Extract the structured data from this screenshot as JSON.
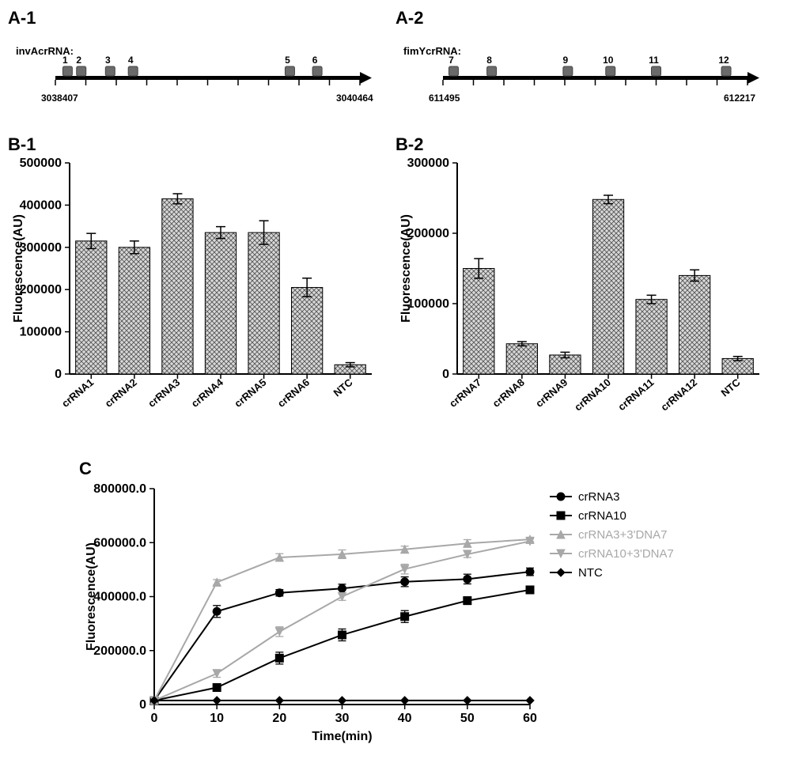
{
  "colors": {
    "black": "#000000",
    "gray": "#a8a8a8",
    "bar_fill": "#888888",
    "hatch": "#555555",
    "marker_fill": "#6b6b6b",
    "bg": "#ffffff"
  },
  "panelA1": {
    "label": "A-1",
    "title": "invAcrRNA:",
    "start_coord": "3038407",
    "end_coord": "3040464",
    "markers": [
      {
        "num": "1",
        "pos": 0.04
      },
      {
        "num": "2",
        "pos": 0.085
      },
      {
        "num": "3",
        "pos": 0.18
      },
      {
        "num": "4",
        "pos": 0.255
      },
      {
        "num": "5",
        "pos": 0.77
      },
      {
        "num": "6",
        "pos": 0.86
      }
    ]
  },
  "panelA2": {
    "label": "A-2",
    "title": "fimYcrRNA:",
    "start_coord": "611495",
    "end_coord": "612217",
    "markers": [
      {
        "num": "7",
        "pos": 0.035
      },
      {
        "num": "8",
        "pos": 0.16
      },
      {
        "num": "9",
        "pos": 0.41
      },
      {
        "num": "10",
        "pos": 0.55
      },
      {
        "num": "11",
        "pos": 0.7
      },
      {
        "num": "12",
        "pos": 0.93
      }
    ]
  },
  "panelB1": {
    "label": "B-1",
    "type": "bar",
    "ylabel": "Fluorescence(AU)",
    "ylim": [
      0,
      500000
    ],
    "ytick_step": 100000,
    "categories": [
      "crRNA1",
      "crRNA2",
      "crRNA3",
      "crRNA4",
      "crRNA5",
      "crRNA6",
      "NTC"
    ],
    "values": [
      315000,
      300000,
      415000,
      335000,
      335000,
      205000,
      22000
    ],
    "errors": [
      18000,
      15000,
      12000,
      14000,
      28000,
      22000,
      5000
    ],
    "bar_width": 0.72,
    "bar_pattern": "crosshatch",
    "bar_fill": "#b8b8b8",
    "axis_color": "#000000",
    "chart_bg": "#ffffff",
    "label_fontsize": 13
  },
  "panelB2": {
    "label": "B-2",
    "type": "bar",
    "ylabel": "Fluorescence(AU)",
    "ylim": [
      0,
      300000
    ],
    "ytick_step": 100000,
    "categories": [
      "crRNA7",
      "crRNA8",
      "crRNA9",
      "crRNA10",
      "crRNA11",
      "crRNA12",
      "NTC"
    ],
    "values": [
      150000,
      43000,
      27000,
      248000,
      106000,
      140000,
      22000
    ],
    "errors": [
      14000,
      3000,
      4000,
      6000,
      6000,
      8000,
      3000
    ],
    "bar_width": 0.72,
    "bar_pattern": "crosshatch",
    "bar_fill": "#b8b8b8",
    "axis_color": "#000000",
    "chart_bg": "#ffffff",
    "label_fontsize": 13
  },
  "panelC": {
    "label": "C",
    "type": "line",
    "ylabel": "Fluorescence(AU)",
    "xlabel": "Time(min)",
    "ylim": [
      0,
      800000
    ],
    "ytick_step": 200000,
    "ytick_format": "decimal1",
    "xlim": [
      0,
      60
    ],
    "xtick_step": 10,
    "axis_color": "#000000",
    "chart_bg": "#ffffff",
    "series": [
      {
        "name": "crRNA3",
        "color": "#000000",
        "marker": "circle",
        "data": [
          [
            0,
            15000
          ],
          [
            10,
            345000
          ],
          [
            20,
            414000
          ],
          [
            30,
            430000
          ],
          [
            40,
            455000
          ],
          [
            50,
            465000
          ],
          [
            60,
            492000
          ]
        ],
        "err": [
          0,
          22000,
          12000,
          16000,
          18000,
          18000,
          14000
        ]
      },
      {
        "name": "crRNA10",
        "color": "#000000",
        "marker": "square",
        "data": [
          [
            0,
            15000
          ],
          [
            10,
            63000
          ],
          [
            20,
            172000
          ],
          [
            30,
            258000
          ],
          [
            40,
            326000
          ],
          [
            50,
            385000
          ],
          [
            60,
            425000
          ]
        ],
        "err": [
          0,
          14000,
          22000,
          22000,
          22000,
          14000,
          14000
        ]
      },
      {
        "name": "crRNA3+3'DNA7",
        "color": "#a8a8a8",
        "marker": "triangle-up",
        "data": [
          [
            0,
            15000
          ],
          [
            10,
            453000
          ],
          [
            20,
            545000
          ],
          [
            30,
            557000
          ],
          [
            40,
            575000
          ],
          [
            50,
            597000
          ],
          [
            60,
            612000
          ]
        ],
        "err": [
          0,
          10000,
          14000,
          16000,
          12000,
          14000,
          8000
        ]
      },
      {
        "name": "crRNA10+3'DNA7",
        "color": "#a8a8a8",
        "marker": "triangle-down",
        "data": [
          [
            0,
            15000
          ],
          [
            10,
            115000
          ],
          [
            20,
            270000
          ],
          [
            30,
            400000
          ],
          [
            40,
            502000
          ],
          [
            50,
            557000
          ],
          [
            60,
            605000
          ]
        ],
        "err": [
          0,
          14000,
          18000,
          14000,
          18000,
          12000,
          8000
        ]
      },
      {
        "name": "NTC",
        "color": "#000000",
        "marker": "diamond",
        "data": [
          [
            0,
            15000
          ],
          [
            10,
            15000
          ],
          [
            20,
            15000
          ],
          [
            30,
            15000
          ],
          [
            40,
            15000
          ],
          [
            50,
            15000
          ],
          [
            60,
            15000
          ]
        ],
        "err": [
          0,
          0,
          0,
          0,
          0,
          0,
          0
        ]
      }
    ]
  }
}
